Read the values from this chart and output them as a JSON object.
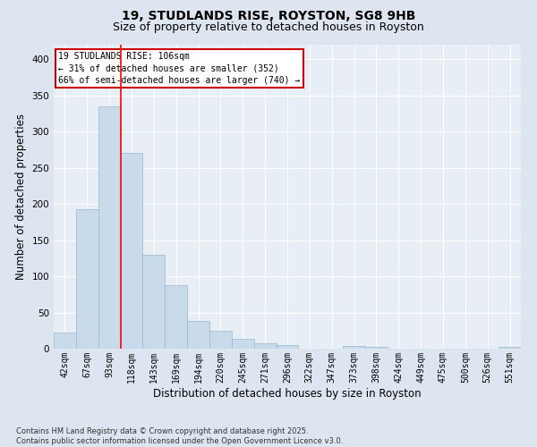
{
  "title_line1": "19, STUDLANDS RISE, ROYSTON, SG8 9HB",
  "title_line2": "Size of property relative to detached houses in Royston",
  "xlabel": "Distribution of detached houses by size in Royston",
  "ylabel": "Number of detached properties",
  "footnote": "Contains HM Land Registry data © Crown copyright and database right 2025.\nContains public sector information licensed under the Open Government Licence v3.0.",
  "categories": [
    "42sqm",
    "67sqm",
    "93sqm",
    "118sqm",
    "143sqm",
    "169sqm",
    "194sqm",
    "220sqm",
    "245sqm",
    "271sqm",
    "296sqm",
    "322sqm",
    "347sqm",
    "373sqm",
    "398sqm",
    "424sqm",
    "449sqm",
    "475sqm",
    "500sqm",
    "526sqm",
    "551sqm"
  ],
  "values": [
    22,
    193,
    335,
    270,
    130,
    88,
    38,
    25,
    14,
    8,
    5,
    0,
    0,
    4,
    3,
    0,
    0,
    0,
    0,
    0,
    3
  ],
  "bar_color": "#c9daea",
  "bar_edge_color": "#9ab8cc",
  "red_line_x": 2.5,
  "annotation_text": "19 STUDLANDS RISE: 106sqm\n← 31% of detached houses are smaller (352)\n66% of semi-detached houses are larger (740) →",
  "annotation_box_color": "#ffffff",
  "annotation_box_edge": "#cc0000",
  "annotation_text_color": "#000000",
  "ylim": [
    0,
    420
  ],
  "yticks": [
    0,
    50,
    100,
    150,
    200,
    250,
    300,
    350,
    400
  ],
  "bg_color": "#dde6f0",
  "plot_bg_color": "#e8eef6",
  "grid_color": "#ffffff",
  "title_fontsize": 10,
  "subtitle_fontsize": 9,
  "tick_fontsize": 7,
  "label_fontsize": 8.5,
  "annotation_fontsize": 7,
  "footnote_fontsize": 6
}
